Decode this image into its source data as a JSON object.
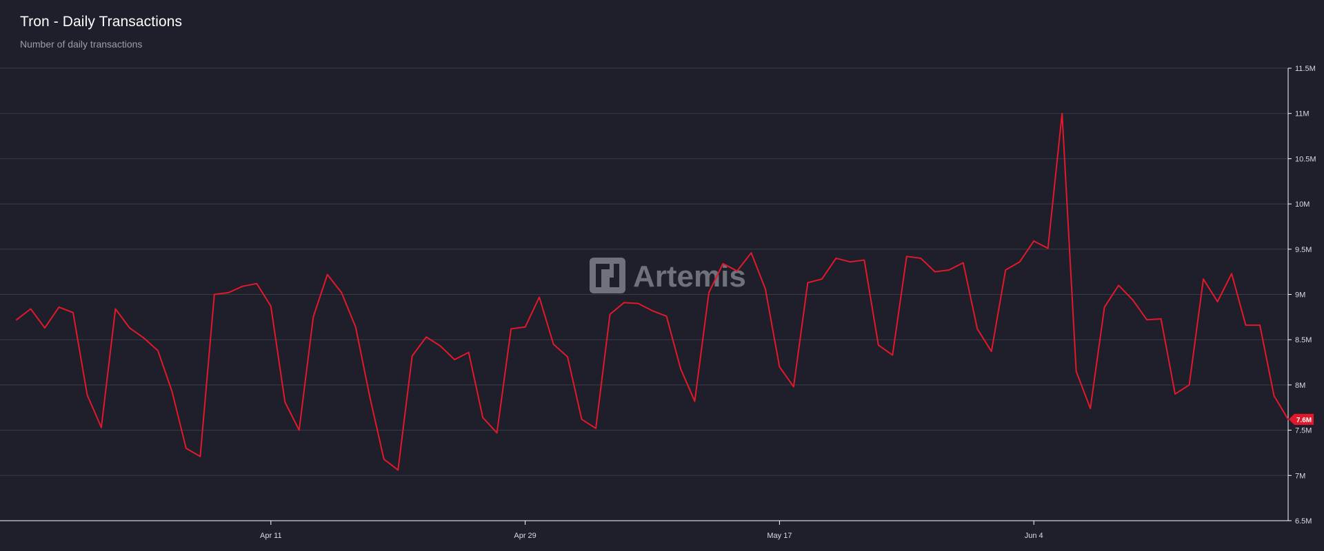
{
  "header": {
    "title": "Tron - Daily Transactions",
    "subtitle": "Number of daily transactions"
  },
  "watermark": {
    "text": "Artemis",
    "icon": "artemis-logo-icon"
  },
  "colors": {
    "background": "#1e1f2a",
    "line": "#e3192b",
    "grid": "#3a3c48",
    "axis": "#ffffff",
    "tick_text": "#d9dbe3"
  },
  "chart_data": {
    "type": "line",
    "title": "Tron - Daily Transactions",
    "subtitle": "Number of daily transactions",
    "xlabel": "",
    "ylabel": "",
    "x_ticks": [
      "Apr 11",
      "Apr 29",
      "May 17",
      "Jun 4"
    ],
    "y_ticks": [
      "6.5M",
      "7M",
      "7.5M",
      "8M",
      "8.5M",
      "9M",
      "9.5M",
      "10M",
      "10.5M",
      "11M",
      "11.5M"
    ],
    "ylim": [
      6500000,
      11500000
    ],
    "y_axis_position": "right",
    "grid": true,
    "last_value_label": "7.6M",
    "series": [
      {
        "name": "",
        "x": [
          "Mar 24",
          "Mar 25",
          "Mar 26",
          "Mar 27",
          "Mar 28",
          "Mar 29",
          "Mar 30",
          "Mar 31",
          "Apr 1",
          "Apr 2",
          "Apr 3",
          "Apr 4",
          "Apr 5",
          "Apr 6",
          "Apr 7",
          "Apr 8",
          "Apr 9",
          "Apr 10",
          "Apr 11",
          "Apr 12",
          "Apr 13",
          "Apr 14",
          "Apr 15",
          "Apr 16",
          "Apr 17",
          "Apr 18",
          "Apr 19",
          "Apr 20",
          "Apr 21",
          "Apr 22",
          "Apr 23",
          "Apr 24",
          "Apr 25",
          "Apr 26",
          "Apr 27",
          "Apr 28",
          "Apr 29",
          "Apr 30",
          "May 1",
          "May 2",
          "May 3",
          "May 4",
          "May 5",
          "May 6",
          "May 7",
          "May 8",
          "May 9",
          "May 10",
          "May 11",
          "May 12",
          "May 13",
          "May 14",
          "May 15",
          "May 16",
          "May 17",
          "May 18",
          "May 19",
          "May 20",
          "May 21",
          "May 22",
          "May 23",
          "May 24",
          "May 25",
          "May 26",
          "May 27",
          "May 28",
          "May 29",
          "May 30",
          "May 31",
          "Jun 1",
          "Jun 2",
          "Jun 3",
          "Jun 4",
          "Jun 5",
          "Jun 6",
          "Jun 7",
          "Jun 8",
          "Jun 9",
          "Jun 10",
          "Jun 11",
          "Jun 12",
          "Jun 13",
          "Jun 14",
          "Jun 15",
          "Jun 16",
          "Jun 17",
          "Jun 18",
          "Jun 19",
          "Jun 20",
          "Jun 21",
          "Jun 22"
        ],
        "values": [
          8720000,
          8840000,
          8630000,
          8860000,
          8800000,
          7890000,
          7530000,
          8840000,
          8630000,
          8520000,
          8380000,
          7930000,
          7300000,
          7210000,
          9000000,
          9020000,
          9090000,
          9120000,
          8870000,
          7810000,
          7500000,
          8750000,
          9220000,
          9020000,
          8640000,
          7870000,
          7180000,
          7060000,
          8320000,
          8530000,
          8430000,
          8280000,
          8360000,
          7640000,
          7470000,
          8620000,
          8640000,
          8970000,
          8450000,
          8310000,
          7620000,
          7520000,
          8780000,
          8910000,
          8900000,
          8820000,
          8760000,
          8180000,
          7820000,
          9020000,
          9340000,
          9260000,
          9460000,
          9060000,
          8200000,
          7980000,
          9130000,
          9170000,
          9400000,
          9360000,
          9380000,
          8440000,
          8330000,
          9420000,
          9400000,
          9250000,
          9270000,
          9350000,
          8620000,
          8370000,
          9270000,
          9360000,
          9590000,
          9510000,
          11000000,
          8150000,
          7740000,
          8860000,
          9100000,
          8940000,
          8720000,
          8730000,
          7900000,
          8000000,
          9170000,
          8920000,
          9230000,
          8660000,
          8660000,
          7880000,
          7620000
        ]
      }
    ]
  }
}
